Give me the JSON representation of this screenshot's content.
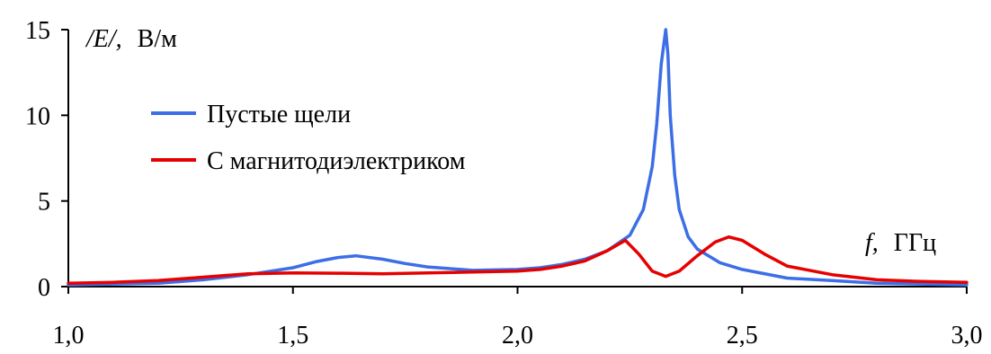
{
  "chart_data": {
    "type": "line",
    "title": "",
    "ylabel_symbol": "/E/,",
    "ylabel_unit": "В/м",
    "xlabel_symbol": "f,",
    "xlabel_unit": "ГГц",
    "xlim": [
      1.0,
      3.0
    ],
    "ylim": [
      0,
      15
    ],
    "x_ticks": [
      "1,0",
      "1,5",
      "2,0",
      "2,5",
      "3,0"
    ],
    "x_tick_values": [
      1.0,
      1.5,
      2.0,
      2.5,
      3.0
    ],
    "y_ticks": [
      "0",
      "5",
      "10",
      "15"
    ],
    "y_tick_values": [
      0,
      5,
      10,
      15
    ],
    "grid": false,
    "legend_position": "upper-left",
    "series": [
      {
        "name": "Пустые щели",
        "color": "#3c6ee6",
        "x": [
          1.0,
          1.1,
          1.2,
          1.3,
          1.4,
          1.5,
          1.55,
          1.6,
          1.64,
          1.7,
          1.75,
          1.8,
          1.9,
          2.0,
          2.05,
          2.1,
          2.15,
          2.2,
          2.25,
          2.28,
          2.3,
          2.31,
          2.32,
          2.33,
          2.335,
          2.34,
          2.35,
          2.36,
          2.38,
          2.4,
          2.45,
          2.5,
          2.6,
          2.7,
          2.8,
          2.9,
          3.0
        ],
        "values": [
          0.1,
          0.15,
          0.2,
          0.4,
          0.7,
          1.1,
          1.45,
          1.7,
          1.8,
          1.6,
          1.35,
          1.15,
          0.95,
          1.0,
          1.1,
          1.3,
          1.6,
          2.1,
          3.0,
          4.5,
          7.0,
          9.5,
          13.0,
          15.0,
          13.5,
          10.0,
          6.5,
          4.5,
          2.9,
          2.2,
          1.4,
          1.0,
          0.5,
          0.35,
          0.2,
          0.15,
          0.1
        ]
      },
      {
        "name": "С магнитодиэлектриком",
        "color": "#e60000",
        "x": [
          1.0,
          1.1,
          1.2,
          1.3,
          1.4,
          1.5,
          1.6,
          1.7,
          1.8,
          1.9,
          2.0,
          2.05,
          2.1,
          2.15,
          2.2,
          2.24,
          2.27,
          2.3,
          2.33,
          2.36,
          2.4,
          2.44,
          2.47,
          2.5,
          2.55,
          2.6,
          2.7,
          2.8,
          2.9,
          3.0
        ],
        "values": [
          0.2,
          0.25,
          0.35,
          0.55,
          0.75,
          0.8,
          0.78,
          0.75,
          0.8,
          0.85,
          0.9,
          1.0,
          1.2,
          1.5,
          2.1,
          2.7,
          1.9,
          0.9,
          0.6,
          0.9,
          1.8,
          2.6,
          2.9,
          2.7,
          1.9,
          1.2,
          0.7,
          0.4,
          0.3,
          0.25
        ]
      }
    ]
  }
}
